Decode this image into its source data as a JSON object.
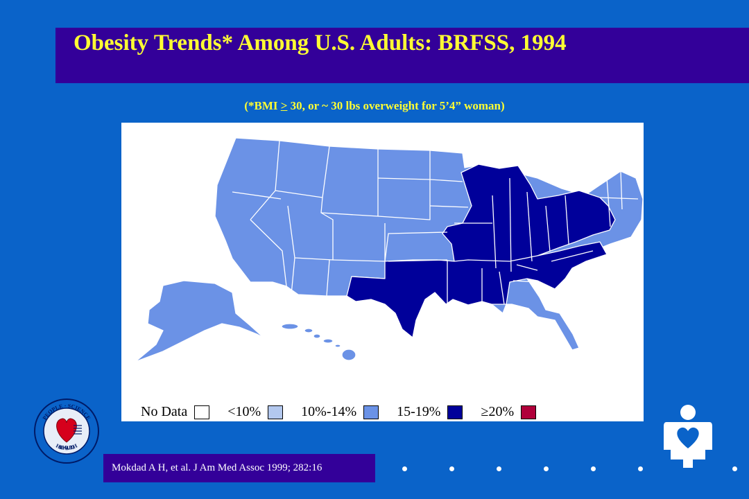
{
  "title": "Obesity Trends* Among U.S. Adults: BRFSS, 1994",
  "subtitle": {
    "prefix": "(*BMI ",
    "gte_symbol": ">",
    "suffix": " 30, or ~ 30 lbs overweight for 5’4” woman)"
  },
  "legend": [
    {
      "label": "No Data",
      "color": "#ffffff"
    },
    {
      "label": "<10%",
      "color": "#b3c8ee"
    },
    {
      "label": "10%-14%",
      "color": "#6b92e6"
    },
    {
      "label": "15-19%",
      "color": "#00009a"
    },
    {
      "label": "≥20%",
      "color": "#b0003a"
    }
  ],
  "map_colors": {
    "light": "#6b92e6",
    "dark": "#00009a",
    "border": "#ffffff"
  },
  "citation": "Mokdad A H, et al. J Am Med Assoc 1999; 282:16",
  "seal": {
    "top_text": "PEOPLE · SCIENCE",
    "bottom_text": "HEALTH",
    "center_text": "NHLBI"
  }
}
